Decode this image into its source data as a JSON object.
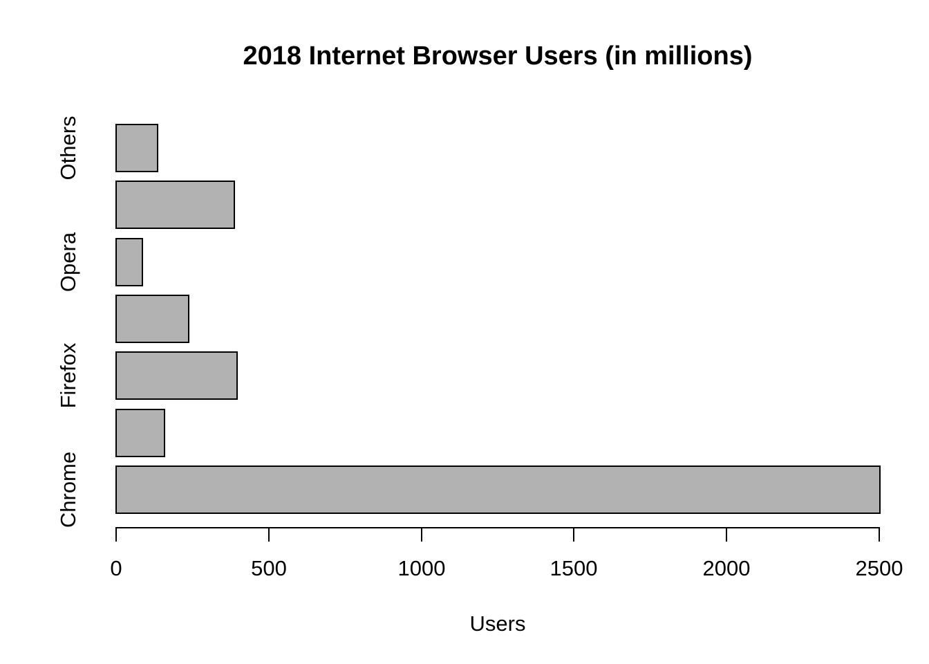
{
  "chart_data": {
    "type": "bar",
    "orientation": "horizontal",
    "title": "2018 Internet Browser Users (in millions)",
    "xlabel": "Users",
    "ylabel": "",
    "xlim": [
      0,
      2500
    ],
    "x_ticks": [
      0,
      500,
      1000,
      1500,
      2000,
      2500
    ],
    "grid": false,
    "legend": false,
    "note": "7 bars drawn top-to-bottom; only alternating bars have visible axis labels",
    "bars": [
      {
        "label": "Others",
        "value": 134.74
      },
      {
        "label": "",
        "value": 387.65
      },
      {
        "label": "Opera",
        "value": 86.49
      },
      {
        "label": "",
        "value": 238.05
      },
      {
        "label": "Firefox",
        "value": 395.83
      },
      {
        "label": "",
        "value": 158.37
      },
      {
        "label": "Chrome",
        "value": 2502.68
      }
    ]
  },
  "colors": {
    "bar_fill": "#b2b2b2",
    "bar_border": "#000000",
    "text": "#000000",
    "background": "#ffffff"
  }
}
